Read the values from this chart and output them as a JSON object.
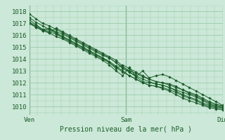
{
  "xlabel": "Pression niveau de la mer( hPa )",
  "bg_color": "#cce8d8",
  "plot_bg_color": "#cce8d8",
  "grid_color": "#99ccaa",
  "line_color": "#1a5c2a",
  "text_color": "#1a5c2a",
  "ylim": [
    1009.3,
    1018.5
  ],
  "yticks": [
    1010,
    1011,
    1012,
    1013,
    1014,
    1015,
    1016,
    1017,
    1018
  ],
  "xtick_positions": [
    0.0,
    0.5,
    1.0
  ],
  "xtick_labels": [
    "Ven",
    "Sam",
    "Dim"
  ],
  "series": [
    [
      1017.8,
      1017.4,
      1017.0,
      1016.8,
      1016.5,
      1016.2,
      1015.9,
      1015.6,
      1015.3,
      1015.0,
      1014.7,
      1014.4,
      1014.1,
      1013.7,
      1013.3,
      1013.0,
      1012.8,
      1012.5,
      1012.3,
      1012.1,
      1012.0,
      1011.8,
      1011.6,
      1011.4,
      1011.2,
      1011.0,
      1010.7,
      1010.4,
      1010.2,
      1010.05
    ],
    [
      1017.3,
      1016.9,
      1016.5,
      1016.3,
      1016.1,
      1015.8,
      1015.5,
      1015.2,
      1014.9,
      1014.6,
      1014.3,
      1014.0,
      1013.7,
      1013.3,
      1012.9,
      1012.6,
      1012.3,
      1012.0,
      1011.8,
      1011.7,
      1011.5,
      1011.3,
      1011.0,
      1010.7,
      1010.5,
      1010.3,
      1010.1,
      1009.9,
      1009.8,
      1009.7
    ],
    [
      1017.1,
      1016.8,
      1016.5,
      1016.6,
      1016.3,
      1016.1,
      1015.8,
      1015.5,
      1015.2,
      1014.9,
      1014.6,
      1014.3,
      1014.1,
      1013.7,
      1013.2,
      1012.9,
      1012.6,
      1012.3,
      1012.1,
      1011.9,
      1011.8,
      1011.6,
      1011.4,
      1011.2,
      1011.0,
      1010.8,
      1010.5,
      1010.2,
      1010.0,
      1009.9
    ],
    [
      1017.0,
      1016.7,
      1016.4,
      1016.5,
      1016.2,
      1015.9,
      1015.6,
      1015.3,
      1015.0,
      1014.7,
      1014.4,
      1014.1,
      1013.8,
      1013.4,
      1013.0,
      1012.6,
      1012.3,
      1012.0,
      1011.8,
      1011.7,
      1011.6,
      1011.4,
      1011.2,
      1010.9,
      1010.7,
      1010.5,
      1010.2,
      1010.0,
      1009.9,
      1009.8
    ],
    [
      1017.0,
      1016.7,
      1016.4,
      1016.2,
      1015.9,
      1015.7,
      1015.4,
      1015.1,
      1014.8,
      1014.5,
      1014.2,
      1013.9,
      1013.5,
      1013.0,
      1012.6,
      1013.3,
      1012.5,
      1012.1,
      1012.0,
      1011.9,
      1011.8,
      1011.6,
      1011.3,
      1011.0,
      1010.8,
      1010.6,
      1010.3,
      1010.1,
      1010.0,
      1009.9
    ],
    [
      1017.0,
      1016.7,
      1016.4,
      1016.2,
      1016.6,
      1016.3,
      1016.0,
      1015.7,
      1015.4,
      1015.1,
      1014.8,
      1014.5,
      1014.2,
      1013.9,
      1013.4,
      1012.9,
      1012.5,
      1013.0,
      1012.4,
      1012.6,
      1012.7,
      1012.5,
      1012.2,
      1011.9,
      1011.6,
      1011.3,
      1011.0,
      1010.7,
      1010.4,
      1010.1
    ],
    [
      1017.5,
      1017.1,
      1016.8,
      1016.5,
      1016.2,
      1015.9,
      1015.6,
      1015.3,
      1015.0,
      1014.7,
      1014.4,
      1014.1,
      1013.7,
      1013.2,
      1013.5,
      1013.2,
      1012.9,
      1012.6,
      1012.3,
      1012.1,
      1012.0,
      1011.9,
      1011.7,
      1011.4,
      1011.1,
      1010.9,
      1010.6,
      1010.3,
      1010.1,
      1010.0
    ]
  ]
}
